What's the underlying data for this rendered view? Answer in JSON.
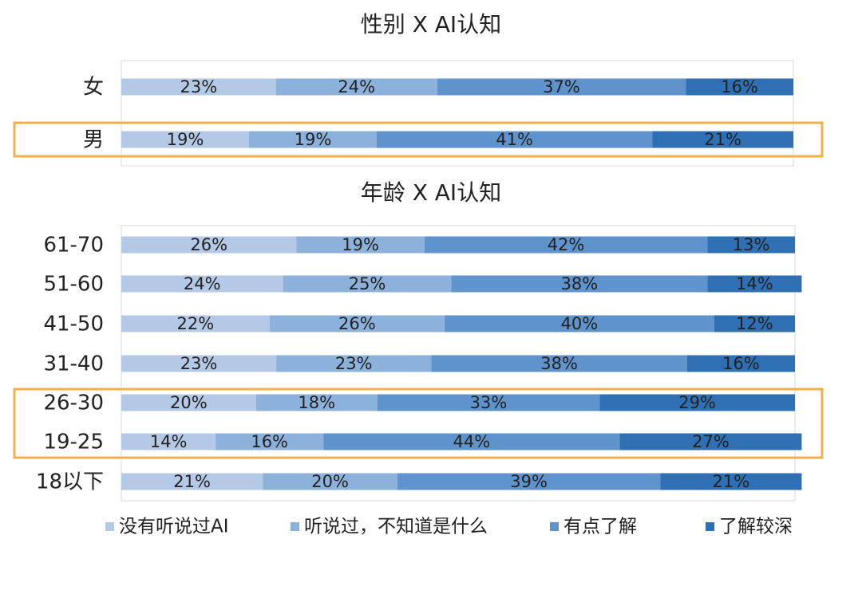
{
  "chart_data": [
    {
      "type": "bar",
      "orientation": "horizontal",
      "stacked": true,
      "title": "性别 X AI认知",
      "categories": [
        "女",
        "男"
      ],
      "series": [
        {
          "name": "没有听说过AI",
          "values": [
            23,
            19
          ]
        },
        {
          "name": "听说过，不知道是什么",
          "values": [
            24,
            19
          ]
        },
        {
          "name": "有点了解",
          "values": [
            37,
            41
          ]
        },
        {
          "name": "了解较深",
          "values": [
            16,
            21
          ]
        }
      ],
      "value_suffix": "%",
      "xlim": [
        0,
        100
      ],
      "highlighted_categories": [
        "男"
      ],
      "grid": false,
      "legend": "bottom"
    },
    {
      "type": "bar",
      "orientation": "horizontal",
      "stacked": true,
      "title": "年龄 X AI认知",
      "categories": [
        "61-70",
        "51-60",
        "41-50",
        "31-40",
        "26-30",
        "19-25",
        "18以下"
      ],
      "series": [
        {
          "name": "没有听说过AI",
          "values": [
            26,
            24,
            22,
            23,
            20,
            14,
            21
          ]
        },
        {
          "name": "听说过，不知道是什么",
          "values": [
            19,
            25,
            26,
            23,
            18,
            16,
            20
          ]
        },
        {
          "name": "有点了解",
          "values": [
            42,
            38,
            40,
            38,
            33,
            44,
            39
          ]
        },
        {
          "name": "了解较深",
          "values": [
            13,
            14,
            12,
            16,
            29,
            27,
            21
          ]
        }
      ],
      "value_suffix": "%",
      "xlim": [
        0,
        100
      ],
      "highlighted_categories": [
        "26-30",
        "19-25"
      ],
      "grid": false,
      "legend": "bottom"
    }
  ],
  "colors": {
    "series": [
      "#b4c9e6",
      "#8cb1da",
      "#5e93cb",
      "#2f6fb3"
    ],
    "highlight_box": "#f2b04b",
    "plot_border": "#d8d8d8",
    "label_text": "#222222"
  }
}
